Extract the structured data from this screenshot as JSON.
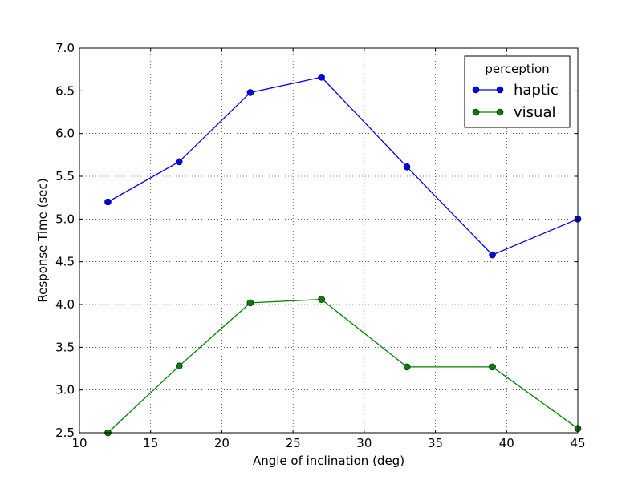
{
  "chart_data": {
    "type": "line",
    "title": "",
    "xlabel": "Angle of inclination (deg)",
    "ylabel": "Response Time (sec)",
    "xlim": [
      10,
      45
    ],
    "ylim": [
      2.5,
      7.0
    ],
    "xticks": [
      10,
      15,
      20,
      25,
      30,
      35,
      40,
      45
    ],
    "xtick_labels": [
      "10",
      "15",
      "20",
      "25",
      "30",
      "35",
      "40",
      "45"
    ],
    "yticks": [
      2.5,
      3.0,
      3.5,
      4.0,
      4.5,
      5.0,
      5.5,
      6.0,
      6.5,
      7.0
    ],
    "ytick_labels": [
      "2.5",
      "3.0",
      "3.5",
      "4.0",
      "4.5",
      "5.0",
      "5.5",
      "6.0",
      "6.5",
      "7.0"
    ],
    "grid": true,
    "legend": {
      "title": "perception",
      "position": "top-right"
    },
    "x": [
      12,
      17,
      22,
      27,
      33,
      39,
      45
    ],
    "series": [
      {
        "name": "haptic",
        "color": "#0000ff",
        "values": [
          5.2,
          5.67,
          6.48,
          6.66,
          5.61,
          4.58,
          5.0
        ]
      },
      {
        "name": "visual",
        "color": "#008000",
        "values": [
          2.5,
          3.28,
          4.02,
          4.06,
          3.27,
          3.27,
          2.55
        ]
      }
    ]
  }
}
